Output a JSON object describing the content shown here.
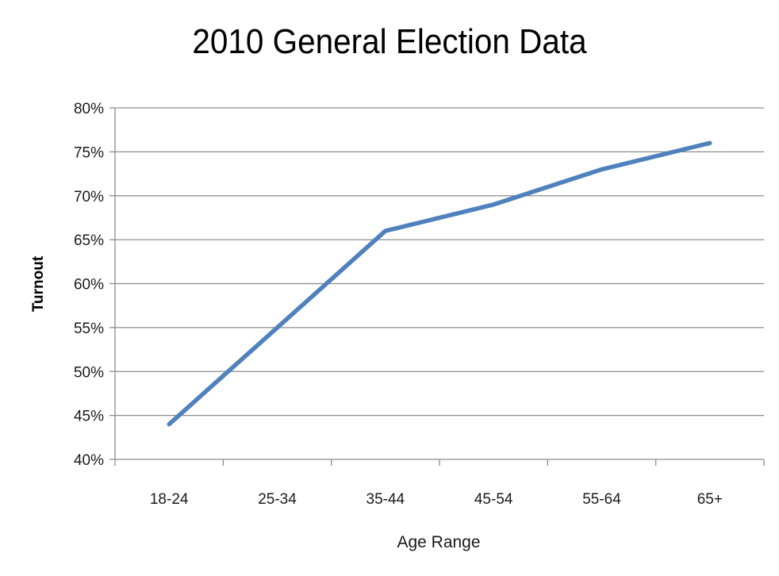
{
  "chart_data": {
    "type": "line",
    "title": "2010 General Election Data",
    "xlabel": "Age Range",
    "ylabel": "Turnout",
    "categories": [
      "18-24",
      "25-34",
      "35-44",
      "45-54",
      "55-64",
      "65+"
    ],
    "y_tick_labels": [
      "40%",
      "45%",
      "50%",
      "55%",
      "60%",
      "65%",
      "70%",
      "75%",
      "80%"
    ],
    "ylim": [
      40,
      80
    ],
    "y_step": 5,
    "grid": "horizontal",
    "legend": "none",
    "series": [
      {
        "values": [
          44,
          55,
          66,
          69,
          73,
          76
        ],
        "color": "#4f81bd"
      }
    ]
  }
}
